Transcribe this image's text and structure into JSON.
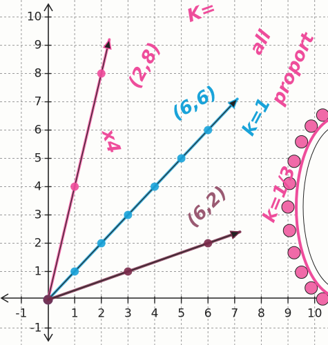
{
  "chart_data": {
    "type": "line",
    "xlim": [
      -1.8,
      10.5
    ],
    "ylim": [
      -1.6,
      10.6
    ],
    "xticks": [
      -1,
      1,
      2,
      3,
      4,
      5,
      6,
      7,
      8,
      9,
      10
    ],
    "yticks": [
      -1,
      1,
      2,
      3,
      4,
      5,
      6,
      7,
      8,
      9,
      10
    ],
    "grid": true,
    "series": [
      {
        "color": "#ee4d9b",
        "x": [
          0,
          1,
          2,
          2.3
        ],
        "values": [
          0,
          4,
          8,
          9.2
        ]
      },
      {
        "color": "#1aa3d9",
        "x": [
          0,
          1,
          2,
          3,
          4,
          5,
          6,
          7.1
        ],
        "values": [
          0,
          1,
          2,
          3,
          4,
          5,
          6,
          7.1
        ]
      },
      {
        "color": "#7a2a4a",
        "x": [
          0,
          3,
          6,
          7.2
        ],
        "values": [
          0,
          1,
          2,
          2.4
        ]
      }
    ],
    "annotations": [
      {
        "text": "(2,8)",
        "color": "#ee4d9b"
      },
      {
        "text": "x4",
        "color": "#ee4d9b"
      },
      {
        "text": "K=",
        "color": "#ee4d9b"
      },
      {
        "text": "all",
        "color": "#ee4d9b"
      },
      {
        "text": "proport",
        "color": "#ee4d9b"
      },
      {
        "text": "(6,6)",
        "color": "#1aa3d9"
      },
      {
        "text": "k=1",
        "color": "#1aa3d9"
      },
      {
        "text": "(6,2)",
        "color": "#9a5a72"
      },
      {
        "text": "k=1/3",
        "color": "#ee4d9b"
      }
    ]
  }
}
